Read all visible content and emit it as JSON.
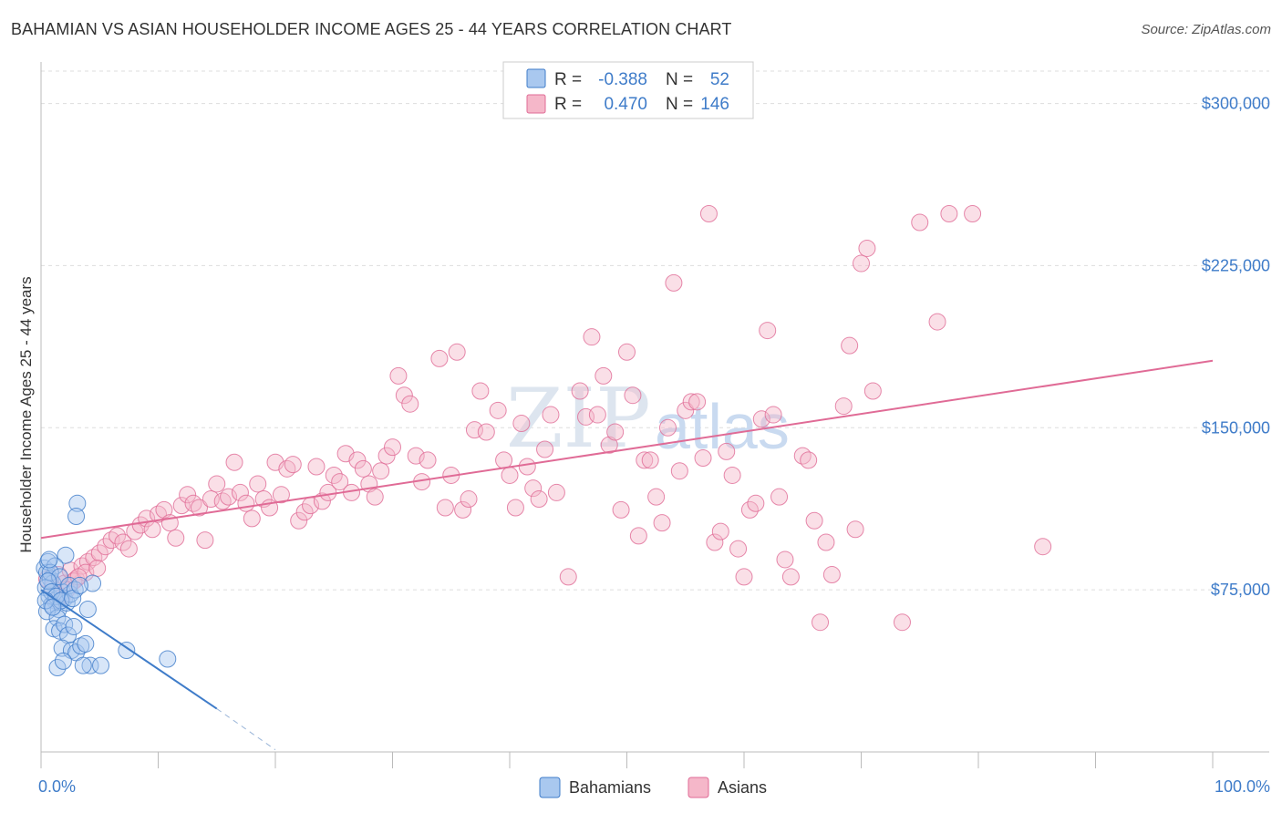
{
  "title": "BAHAMIAN VS ASIAN HOUSEHOLDER INCOME AGES 25 - 44 YEARS CORRELATION CHART",
  "source": "Source: ZipAtlas.com",
  "watermark": {
    "zip": "ZIP",
    "atlas": "atlas"
  },
  "colors": {
    "blue": "#3f7cc9",
    "pink": "#e06b96",
    "blue_fill": "#a9c8ef",
    "pink_fill": "#f5b7c9"
  },
  "legend": {
    "rows": [
      {
        "r_label": "R =",
        "r_value": "-0.388",
        "n_label": "N =",
        "n_value": "52"
      },
      {
        "r_label": "R =",
        "r_value": "0.470",
        "n_label": "N =",
        "n_value": "146"
      }
    ]
  },
  "bottom_legend": {
    "bahamians": "Bahamians",
    "asians": "Asians"
  },
  "chart_data": {
    "type": "scatter",
    "title": "BAHAMIAN VS ASIAN HOUSEHOLDER INCOME AGES 25 - 44 YEARS CORRELATION CHART",
    "xlabel": "",
    "ylabel": "Householder Income Ages 25 - 44 years",
    "xlim": [
      0,
      100
    ],
    "ylim": [
      0,
      315000
    ],
    "x_tick_labels": [
      "0.0%",
      "100.0%"
    ],
    "y_ticks": [
      75000,
      150000,
      225000,
      300000
    ],
    "y_tick_labels": [
      "$75,000",
      "$150,000",
      "$225,000",
      "$300,000"
    ],
    "series": [
      {
        "name": "Bahamians",
        "points": [
          [
            0.3,
            85000
          ],
          [
            0.5,
            83000
          ],
          [
            0.6,
            88000
          ],
          [
            0.8,
            80000
          ],
          [
            1.0,
            78000
          ],
          [
            0.4,
            76000
          ],
          [
            0.7,
            72000
          ],
          [
            1.2,
            70000
          ],
          [
            0.9,
            68000
          ],
          [
            1.5,
            66000
          ],
          [
            0.5,
            65000
          ],
          [
            1.8,
            74000
          ],
          [
            2.0,
            71000
          ],
          [
            2.2,
            69000
          ],
          [
            1.4,
            62000
          ],
          [
            2.5,
            73000
          ],
          [
            1.1,
            57000
          ],
          [
            1.6,
            56000
          ],
          [
            2.0,
            59000
          ],
          [
            2.3,
            54000
          ],
          [
            2.8,
            58000
          ],
          [
            1.8,
            48000
          ],
          [
            2.6,
            47000
          ],
          [
            3.0,
            46000
          ],
          [
            3.4,
            49000
          ],
          [
            3.8,
            50000
          ],
          [
            4.2,
            40000
          ],
          [
            3.6,
            40000
          ],
          [
            1.4,
            39000
          ],
          [
            1.9,
            42000
          ],
          [
            4.4,
            78000
          ],
          [
            4.0,
            66000
          ],
          [
            3.1,
            115000
          ],
          [
            3.0,
            109000
          ],
          [
            2.1,
            91000
          ],
          [
            1.2,
            86000
          ],
          [
            0.8,
            83000
          ],
          [
            1.6,
            81000
          ],
          [
            2.4,
            77000
          ],
          [
            0.6,
            79000
          ],
          [
            0.9,
            74000
          ],
          [
            1.3,
            72000
          ],
          [
            1.7,
            70000
          ],
          [
            2.9,
            75000
          ],
          [
            7.3,
            47000
          ],
          [
            10.8,
            43000
          ],
          [
            0.4,
            70000
          ],
          [
            1.0,
            67000
          ],
          [
            2.7,
            71000
          ],
          [
            3.3,
            77000
          ],
          [
            0.7,
            89000
          ],
          [
            5.1,
            40000
          ]
        ],
        "trend": {
          "x0": 0,
          "y0": 75000,
          "x1": 15,
          "y1": 20000,
          "dash_x1": 20,
          "dash_y1": 1000
        }
      },
      {
        "name": "Asians",
        "points": [
          [
            0.5,
            80000
          ],
          [
            1.0,
            76000
          ],
          [
            1.5,
            82000
          ],
          [
            2.0,
            78000
          ],
          [
            2.5,
            84000
          ],
          [
            3.0,
            80000
          ],
          [
            3.5,
            86000
          ],
          [
            4.0,
            88000
          ],
          [
            4.5,
            90000
          ],
          [
            5.0,
            92000
          ],
          [
            1.2,
            70000
          ],
          [
            1.8,
            72000
          ],
          [
            2.8,
            79000
          ],
          [
            3.8,
            83000
          ],
          [
            4.8,
            85000
          ],
          [
            5.5,
            95000
          ],
          [
            6.0,
            98000
          ],
          [
            6.5,
            100000
          ],
          [
            7.0,
            97000
          ],
          [
            7.5,
            94000
          ],
          [
            8.0,
            102000
          ],
          [
            8.5,
            105000
          ],
          [
            9.0,
            108000
          ],
          [
            9.5,
            103000
          ],
          [
            10.0,
            110000
          ],
          [
            10.5,
            112000
          ],
          [
            11.0,
            106000
          ],
          [
            11.5,
            99000
          ],
          [
            12.0,
            114000
          ],
          [
            12.5,
            119000
          ],
          [
            13.0,
            115000
          ],
          [
            13.5,
            113000
          ],
          [
            14.0,
            98000
          ],
          [
            14.5,
            117000
          ],
          [
            15.0,
            124000
          ],
          [
            15.5,
            116000
          ],
          [
            16.0,
            118000
          ],
          [
            16.5,
            134000
          ],
          [
            17.0,
            120000
          ],
          [
            17.5,
            115000
          ],
          [
            18.0,
            108000
          ],
          [
            18.5,
            124000
          ],
          [
            19.0,
            117000
          ],
          [
            19.5,
            113000
          ],
          [
            20.0,
            134000
          ],
          [
            20.5,
            119000
          ],
          [
            21.0,
            131000
          ],
          [
            21.5,
            133000
          ],
          [
            22.0,
            107000
          ],
          [
            22.5,
            111000
          ],
          [
            23.0,
            114000
          ],
          [
            23.5,
            132000
          ],
          [
            24.0,
            116000
          ],
          [
            24.5,
            120000
          ],
          [
            25.0,
            128000
          ],
          [
            25.5,
            125000
          ],
          [
            26.0,
            138000
          ],
          [
            26.5,
            120000
          ],
          [
            27.0,
            135000
          ],
          [
            27.5,
            131000
          ],
          [
            28.0,
            124000
          ],
          [
            28.5,
            118000
          ],
          [
            29.0,
            130000
          ],
          [
            29.5,
            137000
          ],
          [
            30.0,
            141000
          ],
          [
            30.5,
            174000
          ],
          [
            31.0,
            165000
          ],
          [
            31.5,
            161000
          ],
          [
            32.0,
            137000
          ],
          [
            32.5,
            125000
          ],
          [
            33.0,
            135000
          ],
          [
            34.0,
            182000
          ],
          [
            34.5,
            113000
          ],
          [
            35.0,
            128000
          ],
          [
            35.5,
            185000
          ],
          [
            36.0,
            112000
          ],
          [
            36.5,
            117000
          ],
          [
            37.0,
            149000
          ],
          [
            37.5,
            167000
          ],
          [
            38.0,
            148000
          ],
          [
            39.0,
            158000
          ],
          [
            39.5,
            135000
          ],
          [
            40.0,
            128000
          ],
          [
            40.5,
            113000
          ],
          [
            41.0,
            152000
          ],
          [
            41.5,
            132000
          ],
          [
            42.0,
            122000
          ],
          [
            42.5,
            117000
          ],
          [
            43.0,
            140000
          ],
          [
            43.5,
            156000
          ],
          [
            44.0,
            120000
          ],
          [
            45.0,
            81000
          ],
          [
            46.0,
            167000
          ],
          [
            46.5,
            155000
          ],
          [
            47.0,
            192000
          ],
          [
            47.5,
            156000
          ],
          [
            48.0,
            174000
          ],
          [
            48.5,
            142000
          ],
          [
            49.0,
            148000
          ],
          [
            49.5,
            112000
          ],
          [
            50.0,
            185000
          ],
          [
            50.5,
            165000
          ],
          [
            51.0,
            100000
          ],
          [
            51.5,
            135000
          ],
          [
            52.0,
            135000
          ],
          [
            52.5,
            118000
          ],
          [
            53.0,
            106000
          ],
          [
            53.5,
            150000
          ],
          [
            54.0,
            217000
          ],
          [
            54.5,
            130000
          ],
          [
            55.0,
            158000
          ],
          [
            55.5,
            162000
          ],
          [
            56.0,
            162000
          ],
          [
            56.5,
            136000
          ],
          [
            57.0,
            249000
          ],
          [
            57.5,
            97000
          ],
          [
            58.0,
            102000
          ],
          [
            58.5,
            139000
          ],
          [
            59.0,
            128000
          ],
          [
            59.5,
            94000
          ],
          [
            60.0,
            81000
          ],
          [
            60.5,
            112000
          ],
          [
            61.0,
            115000
          ],
          [
            61.5,
            154000
          ],
          [
            62.0,
            195000
          ],
          [
            62.5,
            156000
          ],
          [
            63.0,
            118000
          ],
          [
            63.5,
            89000
          ],
          [
            64.0,
            81000
          ],
          [
            65.0,
            137000
          ],
          [
            65.5,
            135000
          ],
          [
            66.0,
            107000
          ],
          [
            66.5,
            60000
          ],
          [
            67.0,
            97000
          ],
          [
            67.5,
            82000
          ],
          [
            68.5,
            160000
          ],
          [
            69.0,
            188000
          ],
          [
            69.5,
            103000
          ],
          [
            70.0,
            226000
          ],
          [
            70.5,
            233000
          ],
          [
            71.0,
            167000
          ],
          [
            73.5,
            60000
          ],
          [
            75.0,
            245000
          ],
          [
            76.5,
            199000
          ],
          [
            77.5,
            249000
          ],
          [
            79.5,
            249000
          ],
          [
            85.5,
            95000
          ],
          [
            1.5,
            72000
          ],
          [
            2.2,
            75000
          ],
          [
            3.2,
            81000
          ]
        ],
        "trend": {
          "x0": 0,
          "y0": 99000,
          "x1": 100,
          "y1": 181000
        }
      }
    ]
  }
}
